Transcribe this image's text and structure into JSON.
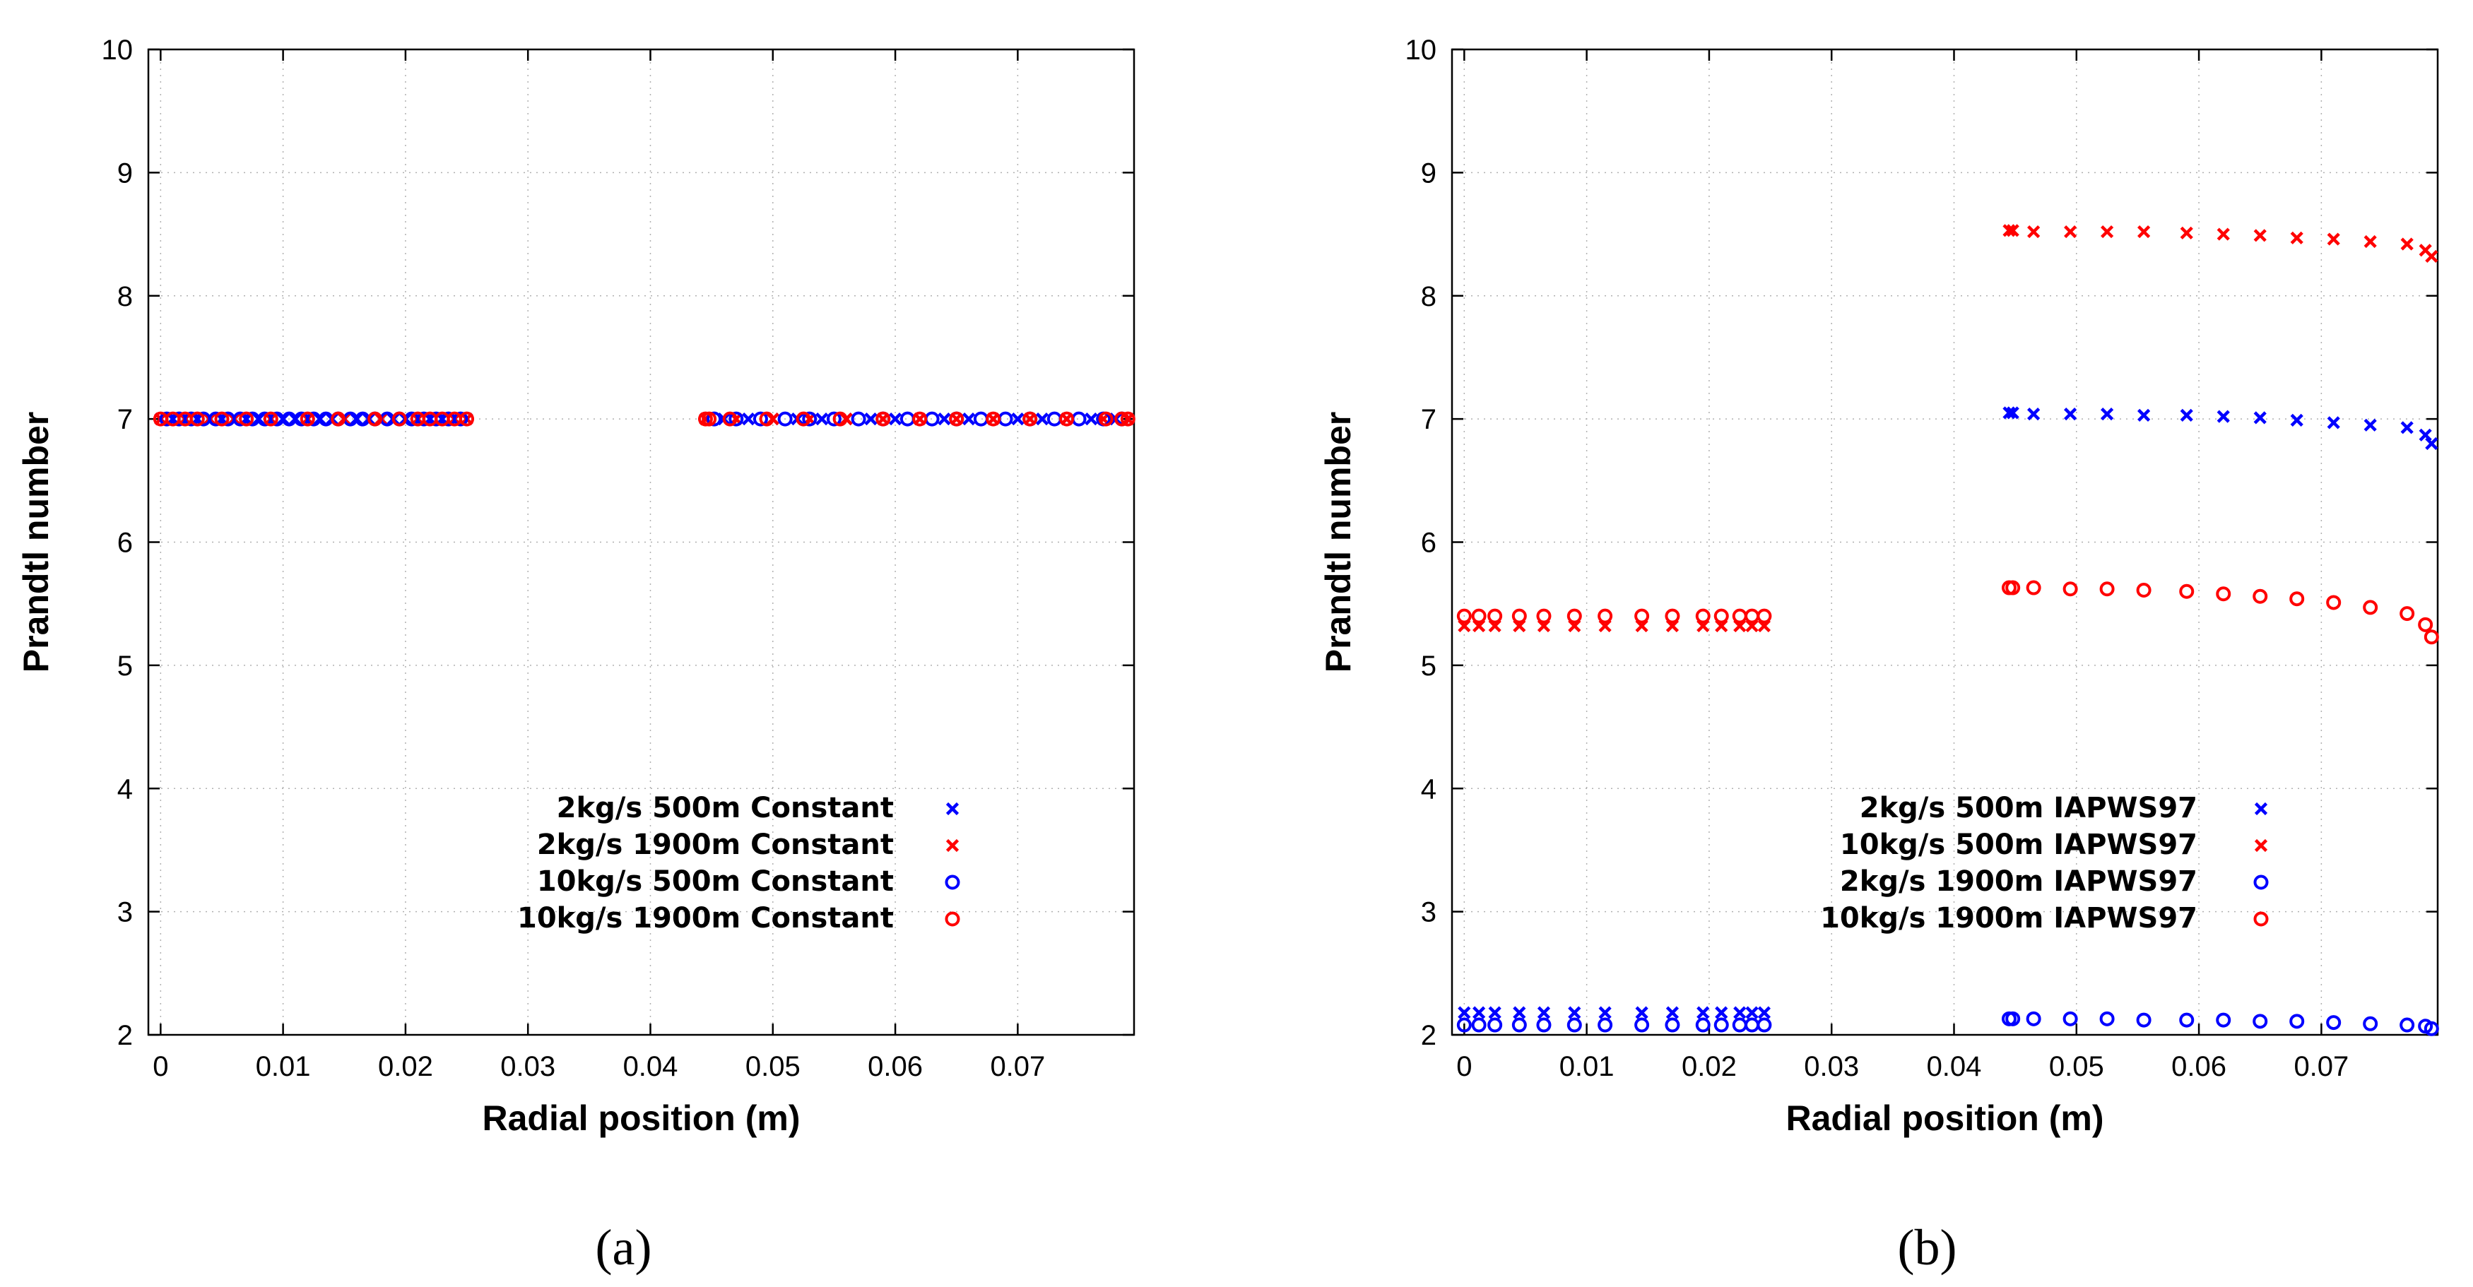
{
  "chart_data": [
    {
      "type": "scatter",
      "panel_label": "(a)",
      "xlabel": "Radial position (m)",
      "ylabel": "Prandtl number",
      "xlim": [
        -0.001,
        0.0795
      ],
      "ylim": [
        2,
        10
      ],
      "xticks": [
        0,
        0.01,
        0.02,
        0.03,
        0.04,
        0.05,
        0.06,
        0.07
      ],
      "xtick_labels": [
        "0",
        "0.01",
        "0.02",
        "0.03",
        "0.04",
        "0.05",
        "0.06",
        "0.07"
      ],
      "yticks": [
        2,
        3,
        4,
        5,
        6,
        7,
        8,
        9,
        10
      ],
      "ytick_labels": [
        "2",
        "3",
        "4",
        "5",
        "6",
        "7",
        "8",
        "9",
        "10"
      ],
      "grid": true,
      "legend_position": "bottom-right",
      "series": [
        {
          "name": "2kg/s 500m Constant",
          "marker": "x",
          "color": "#0000ff",
          "x": [
            0,
            0.001,
            0.002,
            0.003,
            0.004,
            0.005,
            0.006,
            0.007,
            0.008,
            0.009,
            0.01,
            0.011,
            0.012,
            0.013,
            0.014,
            0.015,
            0.016,
            0.017,
            0.018,
            0.019,
            0.02,
            0.021,
            0.022,
            0.023,
            0.024,
            0.025,
            0.0445,
            0.046,
            0.048,
            0.05,
            0.052,
            0.054,
            0.056,
            0.058,
            0.06,
            0.062,
            0.064,
            0.066,
            0.068,
            0.07,
            0.072,
            0.074,
            0.076,
            0.078,
            0.079
          ],
          "y": [
            7,
            7,
            7,
            7,
            7,
            7,
            7,
            7,
            7,
            7,
            7,
            7,
            7,
            7,
            7,
            7,
            7,
            7,
            7,
            7,
            7,
            7,
            7,
            7,
            7,
            7,
            7,
            7,
            7,
            7,
            7,
            7,
            7,
            7,
            7,
            7,
            7,
            7,
            7,
            7,
            7,
            7,
            7,
            7,
            7
          ]
        },
        {
          "name": "2kg/s 1900m Constant",
          "marker": "x",
          "color": "#ff0000",
          "x": [
            0,
            0.002,
            0.004,
            0.006,
            0.009,
            0.012,
            0.015,
            0.018,
            0.021,
            0.024,
            0.025,
            0.0445,
            0.047,
            0.05,
            0.053,
            0.056,
            0.059,
            0.062,
            0.065,
            0.068,
            0.071,
            0.074,
            0.077,
            0.079
          ],
          "y": [
            7,
            7,
            7,
            7,
            7,
            7,
            7,
            7,
            7,
            7,
            7,
            7,
            7,
            7,
            7,
            7,
            7,
            7,
            7,
            7,
            7,
            7,
            7,
            7
          ]
        },
        {
          "name": "10kg/s 500m Constant",
          "marker": "o",
          "color": "#0000ff",
          "x": [
            0.0005,
            0.0015,
            0.0025,
            0.0035,
            0.0045,
            0.0055,
            0.0065,
            0.0075,
            0.0085,
            0.0095,
            0.0105,
            0.0115,
            0.0125,
            0.0135,
            0.0145,
            0.0155,
            0.0165,
            0.0175,
            0.0185,
            0.0195,
            0.0205,
            0.0215,
            0.0225,
            0.0235,
            0.0245,
            0.0452,
            0.047,
            0.049,
            0.051,
            0.053,
            0.055,
            0.057,
            0.059,
            0.061,
            0.063,
            0.065,
            0.067,
            0.069,
            0.071,
            0.073,
            0.075,
            0.077,
            0.0785
          ],
          "y": [
            7,
            7,
            7,
            7,
            7,
            7,
            7,
            7,
            7,
            7,
            7,
            7,
            7,
            7,
            7,
            7,
            7,
            7,
            7,
            7,
            7,
            7,
            7,
            7,
            7,
            7,
            7,
            7,
            7,
            7,
            7,
            7,
            7,
            7,
            7,
            7,
            7,
            7,
            7,
            7,
            7,
            7,
            7
          ]
        },
        {
          "name": "10kg/s 1900m Constant",
          "marker": "o",
          "color": "#ff0000",
          "x": [
            0,
            0.001,
            0.002,
            0.003,
            0.005,
            0.007,
            0.009,
            0.012,
            0.0145,
            0.0175,
            0.0195,
            0.021,
            0.022,
            0.023,
            0.024,
            0.025,
            0.0445,
            0.0448,
            0.0465,
            0.0495,
            0.0525,
            0.0555,
            0.059,
            0.062,
            0.065,
            0.068,
            0.071,
            0.074,
            0.0772,
            0.0785,
            0.079
          ],
          "y": [
            7,
            7,
            7,
            7,
            7,
            7,
            7,
            7,
            7,
            7,
            7,
            7,
            7,
            7,
            7,
            7,
            7,
            7,
            7,
            7,
            7,
            7,
            7,
            7,
            7,
            7,
            7,
            7,
            7,
            7,
            7
          ]
        }
      ]
    },
    {
      "type": "scatter",
      "panel_label": "(b)",
      "xlabel": "Radial position (m)",
      "ylabel": "Prandtl number",
      "xlim": [
        -0.001,
        0.0795
      ],
      "ylim": [
        2,
        10
      ],
      "xticks": [
        0,
        0.01,
        0.02,
        0.03,
        0.04,
        0.05,
        0.06,
        0.07
      ],
      "xtick_labels": [
        "0",
        "0.01",
        "0.02",
        "0.03",
        "0.04",
        "0.05",
        "0.06",
        "0.07"
      ],
      "yticks": [
        2,
        3,
        4,
        5,
        6,
        7,
        8,
        9,
        10
      ],
      "ytick_labels": [
        "2",
        "3",
        "4",
        "5",
        "6",
        "7",
        "8",
        "9",
        "10"
      ],
      "grid": true,
      "legend_position": "bottom-right",
      "series": [
        {
          "name": "2kg/s 500m IAPWS97",
          "marker": "x",
          "color": "#0000ff",
          "x": [
            0,
            0.0012,
            0.0025,
            0.0045,
            0.0065,
            0.009,
            0.0115,
            0.0145,
            0.017,
            0.0195,
            0.021,
            0.0225,
            0.0235,
            0.0245,
            0.0445,
            0.0448,
            0.0465,
            0.0495,
            0.0525,
            0.0555,
            0.059,
            0.062,
            0.065,
            0.068,
            0.071,
            0.074,
            0.077,
            0.0785,
            0.079
          ],
          "y": [
            2.18,
            2.18,
            2.18,
            2.18,
            2.18,
            2.18,
            2.18,
            2.18,
            2.18,
            2.18,
            2.18,
            2.18,
            2.18,
            2.18,
            7.05,
            7.05,
            7.04,
            7.04,
            7.04,
            7.03,
            7.03,
            7.02,
            7.01,
            6.99,
            6.97,
            6.95,
            6.93,
            6.87,
            6.8
          ]
        },
        {
          "name": "10kg/s 500m IAPWS97",
          "marker": "x",
          "color": "#ff0000",
          "x": [
            0,
            0.0012,
            0.0025,
            0.0045,
            0.0065,
            0.009,
            0.0115,
            0.0145,
            0.017,
            0.0195,
            0.021,
            0.0225,
            0.0235,
            0.0245,
            0.0445,
            0.0448,
            0.0465,
            0.0495,
            0.0525,
            0.0555,
            0.059,
            0.062,
            0.065,
            0.068,
            0.071,
            0.074,
            0.077,
            0.0785,
            0.079
          ],
          "y": [
            5.32,
            5.32,
            5.32,
            5.32,
            5.32,
            5.32,
            5.32,
            5.32,
            5.32,
            5.32,
            5.32,
            5.32,
            5.32,
            5.32,
            8.53,
            8.53,
            8.52,
            8.52,
            8.52,
            8.52,
            8.51,
            8.5,
            8.49,
            8.47,
            8.46,
            8.44,
            8.42,
            8.37,
            8.32
          ]
        },
        {
          "name": "2kg/s 1900m IAPWS97",
          "marker": "o",
          "color": "#0000ff",
          "x": [
            0,
            0.0012,
            0.0025,
            0.0045,
            0.0065,
            0.009,
            0.0115,
            0.0145,
            0.017,
            0.0195,
            0.021,
            0.0225,
            0.0235,
            0.0245,
            0.0445,
            0.0448,
            0.0465,
            0.0495,
            0.0525,
            0.0555,
            0.059,
            0.062,
            0.065,
            0.068,
            0.071,
            0.074,
            0.077,
            0.0785,
            0.079
          ],
          "y": [
            2.08,
            2.08,
            2.08,
            2.08,
            2.08,
            2.08,
            2.08,
            2.08,
            2.08,
            2.08,
            2.08,
            2.08,
            2.08,
            2.08,
            2.13,
            2.13,
            2.13,
            2.13,
            2.13,
            2.12,
            2.12,
            2.12,
            2.11,
            2.11,
            2.1,
            2.09,
            2.08,
            2.07,
            2.05
          ]
        },
        {
          "name": "10kg/s 1900m IAPWS97",
          "marker": "o",
          "color": "#ff0000",
          "x": [
            0,
            0.0012,
            0.0025,
            0.0045,
            0.0065,
            0.009,
            0.0115,
            0.0145,
            0.017,
            0.0195,
            0.021,
            0.0225,
            0.0235,
            0.0245,
            0.0445,
            0.0448,
            0.0465,
            0.0495,
            0.0525,
            0.0555,
            0.059,
            0.062,
            0.065,
            0.068,
            0.071,
            0.074,
            0.077,
            0.0785,
            0.079
          ],
          "y": [
            5.4,
            5.4,
            5.4,
            5.4,
            5.4,
            5.4,
            5.4,
            5.4,
            5.4,
            5.4,
            5.4,
            5.4,
            5.4,
            5.4,
            5.63,
            5.63,
            5.63,
            5.62,
            5.62,
            5.61,
            5.6,
            5.58,
            5.56,
            5.54,
            5.51,
            5.47,
            5.42,
            5.33,
            5.23
          ]
        }
      ]
    }
  ]
}
